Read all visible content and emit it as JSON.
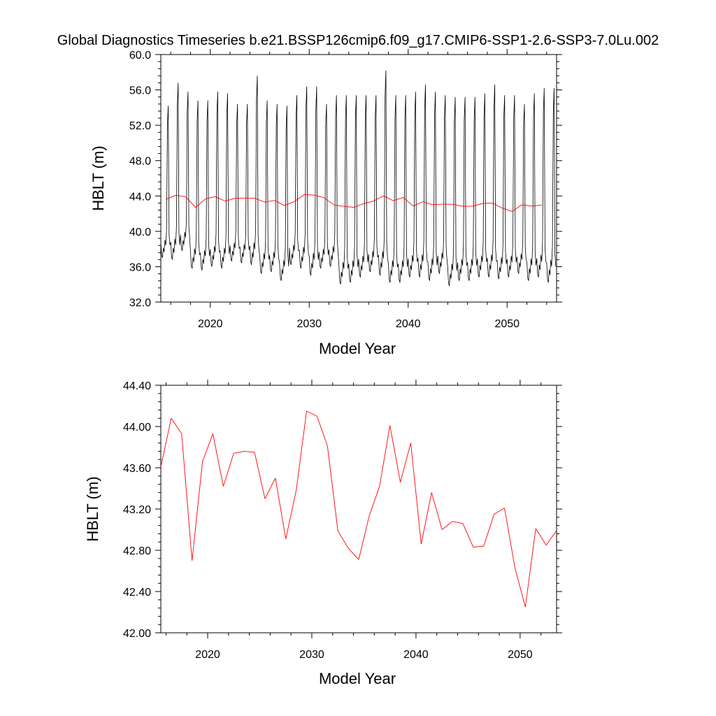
{
  "title": "Global Diagnostics Timeseries b.e21.BSSP126cmip6.f09_g17.CMIP6-SSP1-2.6-SSP3-7.0Lu.002",
  "colors": {
    "monthly": "#000000",
    "annual": "#ff0000",
    "axis": "#000000"
  },
  "chart_data": [
    {
      "type": "line",
      "xlabel": "Model Year",
      "ylabel": "HBLT (m)",
      "xlim": [
        2015,
        2055
      ],
      "ylim": [
        32,
        60
      ],
      "xticks": [
        2020,
        2030,
        2040,
        2050
      ],
      "xtick_labels": [
        "2020",
        "2030",
        "2040",
        "2050"
      ],
      "yticks": [
        32,
        36,
        40,
        44,
        48,
        52,
        56,
        60
      ],
      "ytick_labels": [
        "32.0",
        "36.0",
        "40.0",
        "44.0",
        "48.0",
        "52.0",
        "56.0",
        "60.0"
      ],
      "monthly_series": {
        "x_start": 2015.0,
        "step": 0.08333,
        "annual_max": [
          54.2,
          56.8,
          55.8,
          54.8,
          54.8,
          55.8,
          55.6,
          54.4,
          54.4,
          57.6,
          54.8,
          54.4,
          54.2,
          55.4,
          56.4,
          56.4,
          54.4,
          55.4,
          55.4,
          55.4,
          55.4,
          55.4,
          58.2,
          55.4,
          55.4,
          55.8,
          56.6,
          55.8,
          55.4,
          55.2,
          55.2,
          55.2,
          55.6,
          56.6,
          55.4,
          55.4,
          54.4,
          55.6,
          56.2,
          56.2
        ],
        "annual_min": [
          37.0,
          36.8,
          37.8,
          35.8,
          35.6,
          36.0,
          35.8,
          36.6,
          36.4,
          36.2,
          35.2,
          35.4,
          34.4,
          36.2,
          35.8,
          35.0,
          35.8,
          36.0,
          34.0,
          34.2,
          34.8,
          35.4,
          35.0,
          34.2,
          34.2,
          34.8,
          34.8,
          34.4,
          35.2,
          33.8,
          34.4,
          34.4,
          34.8,
          34.8,
          34.6,
          34.8,
          35.2,
          34.4,
          34.8,
          34.2
        ]
      },
      "series": [
        {
          "x": [
            2015.5,
            2016.5,
            2017.5,
            2018.5,
            2019.5,
            2020.5,
            2021.5,
            2022.5,
            2023.5,
            2024.5,
            2025.5,
            2026.5,
            2027.5,
            2028.5,
            2029.5,
            2030.5,
            2031.5,
            2032.5,
            2033.5,
            2034.5,
            2035.5,
            2036.5,
            2037.5,
            2038.5,
            2039.5,
            2040.5,
            2041.5,
            2042.5,
            2043.5,
            2044.5,
            2045.5,
            2046.5,
            2047.5,
            2048.5,
            2049.5,
            2050.5,
            2051.5,
            2052.5,
            2053.5
          ],
          "values": [
            43.61,
            44.08,
            43.93,
            42.7,
            43.66,
            43.93,
            43.42,
            43.74,
            43.76,
            43.75,
            43.3,
            43.5,
            42.91,
            43.38,
            44.15,
            44.1,
            43.81,
            42.99,
            42.82,
            42.71,
            43.13,
            43.42,
            44.01,
            43.46,
            43.84,
            42.86,
            43.36,
            43.0,
            43.08,
            43.06,
            42.83,
            42.84,
            43.15,
            43.21,
            42.63,
            42.25,
            43.01,
            42.85,
            42.99
          ]
        }
      ]
    },
    {
      "type": "line",
      "xlabel": "Model Year",
      "ylabel": "HBLT (m)",
      "xlim": [
        2015.5,
        2053.5
      ],
      "ylim": [
        42.0,
        44.4
      ],
      "xticks": [
        2020,
        2030,
        2040,
        2050
      ],
      "xtick_labels": [
        "2020",
        "2030",
        "2040",
        "2050"
      ],
      "yticks": [
        42.0,
        42.4,
        42.8,
        43.2,
        43.6,
        44.0,
        44.4
      ],
      "ytick_labels": [
        "42.00",
        "42.40",
        "42.80",
        "43.20",
        "43.60",
        "44.00",
        "44.40"
      ],
      "series": [
        {
          "x": [
            2015.5,
            2016.5,
            2017.5,
            2018.5,
            2019.5,
            2020.5,
            2021.5,
            2022.5,
            2023.5,
            2024.5,
            2025.5,
            2026.5,
            2027.5,
            2028.5,
            2029.5,
            2030.5,
            2031.5,
            2032.5,
            2033.5,
            2034.5,
            2035.5,
            2036.5,
            2037.5,
            2038.5,
            2039.5,
            2040.5,
            2041.5,
            2042.5,
            2043.5,
            2044.5,
            2045.5,
            2046.5,
            2047.5,
            2048.5,
            2049.5,
            2050.5,
            2051.5,
            2052.5,
            2053.5
          ],
          "values": [
            43.61,
            44.08,
            43.93,
            42.7,
            43.66,
            43.93,
            43.42,
            43.74,
            43.76,
            43.75,
            43.3,
            43.5,
            42.91,
            43.38,
            44.15,
            44.1,
            43.81,
            42.99,
            42.82,
            42.71,
            43.13,
            43.42,
            44.01,
            43.46,
            43.84,
            42.86,
            43.36,
            43.0,
            43.08,
            43.06,
            42.83,
            42.84,
            43.15,
            43.21,
            42.63,
            42.25,
            43.01,
            42.85,
            42.99
          ]
        }
      ]
    }
  ]
}
